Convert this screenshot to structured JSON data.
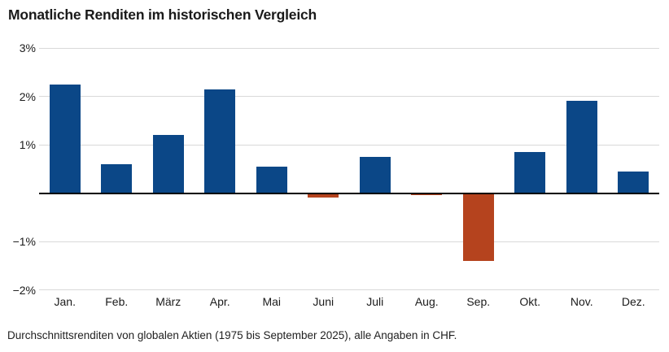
{
  "title": "Monatliche Renditen im historischen Vergleich",
  "footnote": "Durchschnittsrenditen von globalen Aktien (1975 bis September 2025), alle Angaben in CHF.",
  "chart_data": {
    "type": "bar",
    "title": "Monatliche Renditen im historischen Vergleich",
    "categories": [
      "Jan.",
      "Feb.",
      "März",
      "Apr.",
      "Mai",
      "Juni",
      "Juli",
      "Aug.",
      "Sep.",
      "Okt.",
      "Nov.",
      "Dez."
    ],
    "values": [
      2.25,
      0.6,
      1.2,
      2.15,
      0.55,
      -0.1,
      0.75,
      -0.05,
      -1.4,
      0.85,
      1.9,
      0.45
    ],
    "unit": "%",
    "xlabel": "",
    "ylabel": "",
    "ylim": [
      -2,
      3
    ],
    "ytick_values": [
      3,
      2,
      1,
      -1,
      -2
    ],
    "ytick_labels": [
      "3%",
      "2%",
      "1%",
      "−1%",
      "−2%"
    ],
    "zero_axis": true,
    "grid": true,
    "legend": "none",
    "positive_color": "#0b4787",
    "negative_color": "#b5431e",
    "gridline_color": "#d9d9d9",
    "zero_axis_color": "#000000",
    "caption": "Durchschnittsrenditen von globalen Aktien (1975 bis September 2025), alle Angaben in CHF."
  }
}
